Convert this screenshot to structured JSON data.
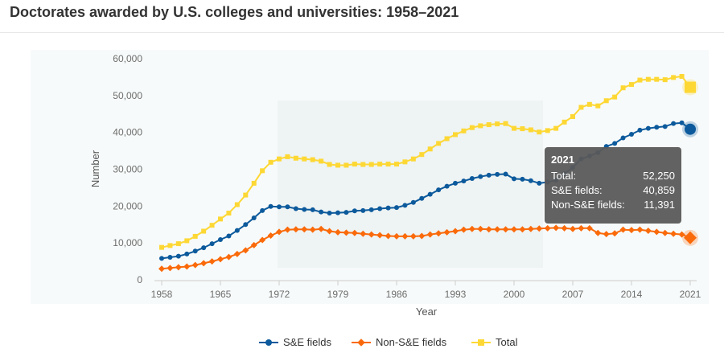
{
  "page": {
    "title": "Doctorates awarded by U.S. colleges and universities: 1958–2021"
  },
  "chart_data": {
    "type": "line",
    "title": "Doctorates awarded by U.S. colleges and universities: 1958–2021",
    "xlabel": "Year",
    "ylabel": "Number",
    "xlim": [
      1958,
      2021
    ],
    "ylim": [
      0,
      60000
    ],
    "x_ticks": [
      1958,
      1965,
      1972,
      1979,
      1986,
      1993,
      2000,
      2007,
      2014,
      2021
    ],
    "y_ticks": [
      {
        "value": 0,
        "label": "0"
      },
      {
        "value": 10000,
        "label": "10,000"
      },
      {
        "value": 20000,
        "label": "20,000"
      },
      {
        "value": 30000,
        "label": "30,000"
      },
      {
        "value": 40000,
        "label": "40,000"
      },
      {
        "value": 50000,
        "label": "50,000"
      },
      {
        "value": 60000,
        "label": "60,000"
      }
    ],
    "grid": false,
    "legend_position": "bottom",
    "x": [
      1958,
      1959,
      1960,
      1961,
      1962,
      1963,
      1964,
      1965,
      1966,
      1967,
      1968,
      1969,
      1970,
      1971,
      1972,
      1973,
      1974,
      1975,
      1976,
      1977,
      1978,
      1979,
      1980,
      1981,
      1982,
      1983,
      1984,
      1985,
      1986,
      1987,
      1988,
      1989,
      1990,
      1991,
      1992,
      1993,
      1994,
      1995,
      1996,
      1997,
      1998,
      1999,
      2000,
      2001,
      2002,
      2003,
      2004,
      2005,
      2006,
      2007,
      2008,
      2009,
      2010,
      2011,
      2012,
      2013,
      2014,
      2015,
      2016,
      2017,
      2018,
      2019,
      2020,
      2021
    ],
    "series": [
      {
        "name": "S&E fields",
        "color": "#0c5a9c",
        "marker": "circle",
        "values": [
          5800,
          6100,
          6400,
          7000,
          7800,
          8700,
          9800,
          10900,
          11900,
          13400,
          15000,
          16800,
          18800,
          19900,
          19800,
          19800,
          19300,
          19100,
          19000,
          18400,
          18100,
          18200,
          18300,
          18700,
          18800,
          19000,
          19300,
          19500,
          19600,
          20200,
          21000,
          22100,
          23200,
          24400,
          25400,
          26200,
          26800,
          27500,
          28000,
          28400,
          28600,
          28700,
          27400,
          27300,
          26900,
          26200,
          26500,
          27000,
          28800,
          30500,
          32800,
          33600,
          34500,
          36200,
          37000,
          38500,
          39500,
          40600,
          41100,
          41400,
          41600,
          42400,
          42600,
          40859
        ]
      },
      {
        "name": "Non-S&E fields",
        "color": "#fa6a0a",
        "marker": "diamond",
        "values": [
          3000,
          3200,
          3400,
          3600,
          4000,
          4500,
          5000,
          5600,
          6200,
          7000,
          8000,
          9400,
          10800,
          12000,
          13000,
          13600,
          13700,
          13700,
          13600,
          13800,
          13200,
          12900,
          12800,
          12700,
          12500,
          12300,
          12100,
          11900,
          11800,
          11800,
          11800,
          11900,
          12300,
          12600,
          12900,
          13200,
          13600,
          13800,
          13800,
          13700,
          13700,
          13700,
          13700,
          13700,
          13800,
          13900,
          14000,
          14100,
          14000,
          13800,
          14000,
          14000,
          12700,
          12400,
          12600,
          13600,
          13500,
          13600,
          13300,
          13000,
          12700,
          12500,
          12300,
          11391
        ]
      },
      {
        "name": "Total",
        "color": "#fdd835",
        "marker": "square",
        "values": [
          8800,
          9300,
          9800,
          10600,
          11800,
          13200,
          14800,
          16500,
          18100,
          20400,
          23000,
          26200,
          29600,
          31900,
          32800,
          33400,
          33000,
          32800,
          32600,
          32200,
          31300,
          31100,
          31100,
          31400,
          31300,
          31300,
          31400,
          31400,
          31400,
          32000,
          32800,
          34000,
          35500,
          37000,
          38300,
          39400,
          40400,
          41300,
          41800,
          42100,
          42300,
          42400,
          41100,
          41000,
          40700,
          40100,
          40500,
          41100,
          42800,
          44300,
          46800,
          47600,
          47200,
          48600,
          49600,
          52100,
          53000,
          54200,
          54400,
          54400,
          54300,
          54900,
          55200,
          52250
        ]
      }
    ],
    "tooltip": {
      "year": "2021",
      "rows": [
        {
          "label": "Total:",
          "value": "52,250"
        },
        {
          "label": "S&E fields:",
          "value": "40,859"
        },
        {
          "label": "Non-S&E fields:",
          "value": "11,391"
        }
      ]
    }
  },
  "legend": {
    "items": [
      {
        "label": "S&E fields",
        "color": "#0c5a9c",
        "marker": "circle"
      },
      {
        "label": "Non-S&E fields",
        "color": "#fa6a0a",
        "marker": "diamond"
      },
      {
        "label": "Total",
        "color": "#fdd835",
        "marker": "square"
      }
    ]
  }
}
